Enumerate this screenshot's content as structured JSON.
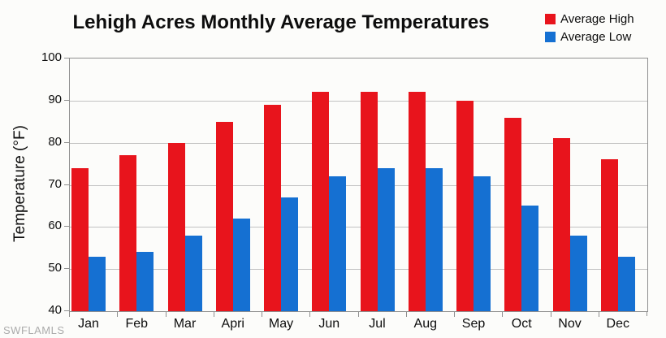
{
  "title": "Lehigh Acres Monthly Average Temperatures",
  "watermark": "SWFLAMLS",
  "axis": {
    "y_tick_labels": [
      "100",
      "90",
      "80",
      "70",
      "60",
      "50",
      "40"
    ]
  },
  "legend": {
    "items": [
      {
        "label": "Average High",
        "color": "#E8141C"
      },
      {
        "label": "Average Low",
        "color": "#1570D2"
      }
    ]
  },
  "chart_data": {
    "type": "bar",
    "title": "Lehigh Acres Monthly Average Temperatures",
    "categories": [
      "Jan",
      "Feb",
      "Mar",
      "Apri",
      "May",
      "Jun",
      "Jul",
      "Aug",
      "Sep",
      "Oct",
      "Nov",
      "Dec"
    ],
    "series": [
      {
        "name": "Average High",
        "color": "#E8141C",
        "values": [
          74,
          77,
          80,
          85,
          89,
          92,
          92,
          92,
          90,
          86,
          81,
          76
        ]
      },
      {
        "name": "Average Low",
        "color": "#1570D2",
        "values": [
          53,
          54,
          58,
          62,
          67,
          72,
          74,
          74,
          72,
          65,
          58,
          53
        ]
      }
    ],
    "xlabel": "",
    "ylabel": "Temperature (°F)",
    "ylim": [
      40,
      100
    ],
    "ytick_step": 10,
    "grid": true,
    "legend_position": "top-right"
  },
  "colors": {
    "grid": "#C2C2C2",
    "axis": "#8F8F8F",
    "text": "#0d0d0d",
    "watermark": "#ABABAB",
    "background": "#FCFCFA"
  }
}
